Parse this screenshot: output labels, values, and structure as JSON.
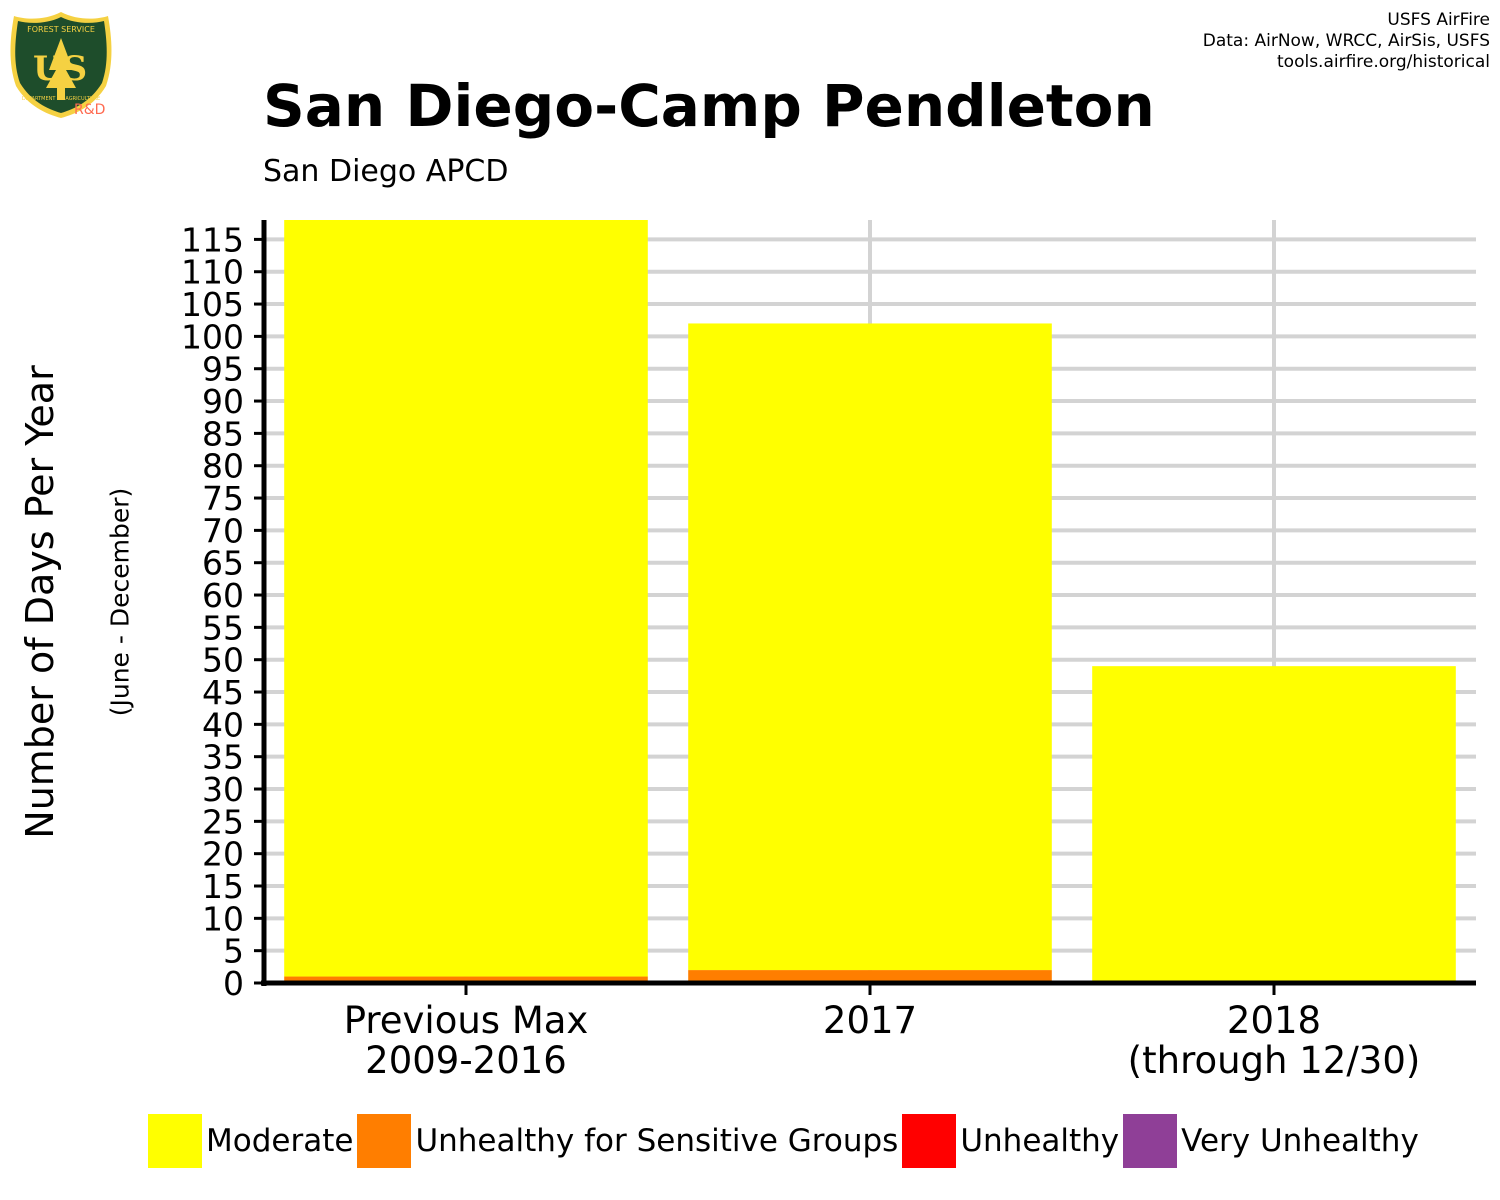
{
  "logo": {
    "top_text": "FOREST SERVICE",
    "letters": "US",
    "bottom_text": "DEPARTMENT OF AGRICULTURE",
    "suffix": "R&D",
    "colors": {
      "shield": "#1e4d2b",
      "trim": "#f5d142",
      "text": "#f5d142",
      "suffix": "#ff6a50"
    }
  },
  "credits": [
    "USFS AirFire",
    "Data: AirNow, WRCC, AirSis, USFS",
    "tools.airfire.org/historical"
  ],
  "title": "San Diego-Camp Pendleton",
  "subtitle": "San Diego APCD",
  "ylabel": "Number of Days Per Year",
  "ysublabel": "(June - December)",
  "chart_data": {
    "type": "bar",
    "stacked": true,
    "categories": [
      [
        "Previous Max",
        "2009-2016"
      ],
      [
        "2017"
      ],
      [
        "2018",
        "(through 12/30)"
      ]
    ],
    "series": [
      {
        "name": "Unhealthy for Sensitive Groups",
        "color": "#ff7e00",
        "values": [
          1,
          2,
          0
        ]
      },
      {
        "name": "Moderate",
        "color": "#ffff00",
        "values": [
          117,
          100,
          49
        ]
      },
      {
        "name": "Unhealthy",
        "color": "#ff0000",
        "values": [
          0,
          0,
          0
        ]
      },
      {
        "name": "Very Unhealthy",
        "color": "#8f3f97",
        "values": [
          0,
          0,
          0
        ]
      }
    ],
    "y_ticks": [
      0,
      5,
      10,
      15,
      20,
      25,
      30,
      35,
      40,
      45,
      50,
      55,
      60,
      65,
      70,
      75,
      80,
      85,
      90,
      95,
      100,
      105,
      110,
      115
    ],
    "ylim": [
      0,
      118
    ],
    "grid": true,
    "legend": {
      "position": "bottom",
      "items": [
        {
          "label": "Moderate",
          "color": "#ffff00"
        },
        {
          "label": "Unhealthy for Sensitive Groups",
          "color": "#ff7e00"
        },
        {
          "label": "Unhealthy",
          "color": "#ff0000"
        },
        {
          "label": "Very Unhealthy",
          "color": "#8f3f97"
        }
      ]
    }
  }
}
